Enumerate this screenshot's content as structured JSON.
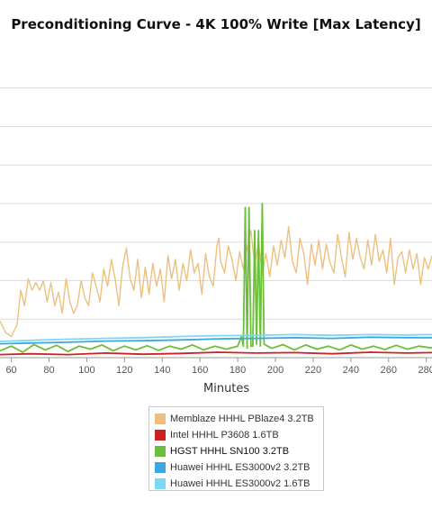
{
  "chart_data": {
    "type": "line",
    "title": "Preconditioning Curve - 4K 100% Write [Max Latency]",
    "xlabel": "Minutes",
    "ylabel": "",
    "x_ticks": [
      60,
      80,
      100,
      120,
      140,
      160,
      180,
      200,
      220,
      240,
      260,
      280
    ],
    "xlim": [
      54,
      283
    ],
    "ylim": [
      0,
      8
    ],
    "y_gridlines": [
      1,
      2,
      3,
      4,
      5,
      6,
      7
    ],
    "grid": true,
    "legend_position": "bottom",
    "series": [
      {
        "name": "Memblaze HHHL PBlaze4 3.2TB",
        "color": "#edc07f",
        "points": [
          [
            54,
            0.95
          ],
          [
            57,
            0.65
          ],
          [
            60,
            0.55
          ],
          [
            63,
            0.85
          ],
          [
            65,
            1.75
          ],
          [
            67,
            1.35
          ],
          [
            69,
            2.05
          ],
          [
            71,
            1.75
          ],
          [
            73,
            1.95
          ],
          [
            75,
            1.75
          ],
          [
            77,
            2.0
          ],
          [
            79,
            1.45
          ],
          [
            81,
            1.95
          ],
          [
            83,
            1.35
          ],
          [
            85,
            1.7
          ],
          [
            87,
            1.15
          ],
          [
            89,
            2.05
          ],
          [
            91,
            1.45
          ],
          [
            93,
            1.15
          ],
          [
            95,
            1.35
          ],
          [
            97,
            2.0
          ],
          [
            99,
            1.55
          ],
          [
            101,
            1.35
          ],
          [
            103,
            2.2
          ],
          [
            105,
            1.85
          ],
          [
            107,
            1.45
          ],
          [
            109,
            2.3
          ],
          [
            111,
            1.85
          ],
          [
            113,
            2.55
          ],
          [
            115,
            2.05
          ],
          [
            117,
            1.35
          ],
          [
            119,
            2.35
          ],
          [
            121,
            2.85
          ],
          [
            123,
            2.05
          ],
          [
            125,
            1.75
          ],
          [
            127,
            2.55
          ],
          [
            129,
            1.55
          ],
          [
            131,
            2.35
          ],
          [
            133,
            1.65
          ],
          [
            135,
            2.45
          ],
          [
            137,
            1.85
          ],
          [
            139,
            2.3
          ],
          [
            141,
            1.45
          ],
          [
            143,
            2.65
          ],
          [
            145,
            2.05
          ],
          [
            147,
            2.55
          ],
          [
            149,
            1.75
          ],
          [
            151,
            2.45
          ],
          [
            153,
            2.0
          ],
          [
            155,
            2.8
          ],
          [
            157,
            2.2
          ],
          [
            159,
            2.45
          ],
          [
            161,
            1.65
          ],
          [
            163,
            2.7
          ],
          [
            165,
            2.1
          ],
          [
            167,
            1.85
          ],
          [
            169,
            2.9
          ],
          [
            170,
            3.1
          ],
          [
            171,
            2.5
          ],
          [
            173,
            2.2
          ],
          [
            175,
            2.9
          ],
          [
            177,
            2.55
          ],
          [
            179,
            2.0
          ],
          [
            181,
            2.75
          ],
          [
            183,
            2.3
          ],
          [
            185,
            2.85
          ],
          [
            187,
            3.3
          ],
          [
            189,
            2.4
          ],
          [
            191,
            3.0
          ],
          [
            193,
            2.2
          ],
          [
            195,
            2.7
          ],
          [
            197,
            2.1
          ],
          [
            199,
            2.9
          ],
          [
            201,
            2.4
          ],
          [
            203,
            3.05
          ],
          [
            205,
            2.6
          ],
          [
            207,
            3.4
          ],
          [
            209,
            2.5
          ],
          [
            211,
            2.2
          ],
          [
            213,
            3.1
          ],
          [
            215,
            2.7
          ],
          [
            217,
            1.9
          ],
          [
            219,
            2.95
          ],
          [
            221,
            2.4
          ],
          [
            223,
            3.05
          ],
          [
            225,
            2.3
          ],
          [
            227,
            2.95
          ],
          [
            229,
            2.45
          ],
          [
            231,
            2.2
          ],
          [
            233,
            3.2
          ],
          [
            235,
            2.6
          ],
          [
            237,
            2.1
          ],
          [
            239,
            3.25
          ],
          [
            241,
            2.55
          ],
          [
            243,
            3.1
          ],
          [
            245,
            2.6
          ],
          [
            247,
            2.3
          ],
          [
            249,
            3.05
          ],
          [
            251,
            2.4
          ],
          [
            253,
            3.2
          ],
          [
            255,
            2.5
          ],
          [
            257,
            2.8
          ],
          [
            259,
            2.2
          ],
          [
            261,
            3.1
          ],
          [
            263,
            1.9
          ],
          [
            265,
            2.6
          ],
          [
            267,
            2.75
          ],
          [
            269,
            2.2
          ],
          [
            271,
            2.8
          ],
          [
            273,
            2.3
          ],
          [
            275,
            2.7
          ],
          [
            277,
            1.9
          ],
          [
            279,
            2.6
          ],
          [
            281,
            2.3
          ],
          [
            283,
            2.65
          ]
        ]
      },
      {
        "name": "Intel HHHL P3608 1.6TB",
        "color": "#cc2222",
        "points": [
          [
            54,
            0.08
          ],
          [
            70,
            0.1
          ],
          [
            90,
            0.08
          ],
          [
            110,
            0.12
          ],
          [
            130,
            0.09
          ],
          [
            150,
            0.11
          ],
          [
            170,
            0.14
          ],
          [
            190,
            0.12
          ],
          [
            210,
            0.13
          ],
          [
            230,
            0.1
          ],
          [
            250,
            0.14
          ],
          [
            270,
            0.12
          ],
          [
            283,
            0.13
          ]
        ]
      },
      {
        "name": "HGST HHHL SN100 3.2TB",
        "color": "#6cbf3a",
        "points": [
          [
            54,
            0.18
          ],
          [
            60,
            0.3
          ],
          [
            66,
            0.14
          ],
          [
            72,
            0.34
          ],
          [
            78,
            0.2
          ],
          [
            84,
            0.32
          ],
          [
            90,
            0.16
          ],
          [
            96,
            0.3
          ],
          [
            102,
            0.22
          ],
          [
            108,
            0.33
          ],
          [
            114,
            0.18
          ],
          [
            120,
            0.3
          ],
          [
            126,
            0.2
          ],
          [
            132,
            0.31
          ],
          [
            138,
            0.19
          ],
          [
            144,
            0.3
          ],
          [
            150,
            0.22
          ],
          [
            156,
            0.33
          ],
          [
            162,
            0.2
          ],
          [
            168,
            0.3
          ],
          [
            174,
            0.22
          ],
          [
            180,
            0.3
          ],
          [
            182,
            0.55
          ],
          [
            183,
            0.3
          ],
          [
            184,
            3.9
          ],
          [
            185,
            0.25
          ],
          [
            186,
            3.9
          ],
          [
            187,
            0.3
          ],
          [
            188,
            0.3
          ],
          [
            189,
            3.3
          ],
          [
            190,
            0.35
          ],
          [
            191,
            3.3
          ],
          [
            192,
            0.3
          ],
          [
            193,
            4.0
          ],
          [
            194,
            0.35
          ],
          [
            198,
            0.24
          ],
          [
            204,
            0.34
          ],
          [
            210,
            0.2
          ],
          [
            216,
            0.33
          ],
          [
            222,
            0.22
          ],
          [
            228,
            0.3
          ],
          [
            234,
            0.2
          ],
          [
            240,
            0.33
          ],
          [
            246,
            0.22
          ],
          [
            252,
            0.3
          ],
          [
            258,
            0.21
          ],
          [
            264,
            0.32
          ],
          [
            270,
            0.22
          ],
          [
            276,
            0.3
          ],
          [
            283,
            0.25
          ]
        ]
      },
      {
        "name": "Huawei HHHL ES3000v2 3.2TB",
        "color": "#3ea7e0",
        "points": [
          [
            54,
            0.36
          ],
          [
            70,
            0.38
          ],
          [
            90,
            0.4
          ],
          [
            110,
            0.43
          ],
          [
            130,
            0.44
          ],
          [
            150,
            0.46
          ],
          [
            170,
            0.49
          ],
          [
            190,
            0.5
          ],
          [
            210,
            0.52
          ],
          [
            230,
            0.5
          ],
          [
            250,
            0.53
          ],
          [
            270,
            0.52
          ],
          [
            283,
            0.52
          ]
        ]
      },
      {
        "name": "Huawei HHHL ES3000v2 1.6TB",
        "color": "#7dd8f4",
        "points": [
          [
            54,
            0.42
          ],
          [
            70,
            0.45
          ],
          [
            90,
            0.48
          ],
          [
            110,
            0.5
          ],
          [
            130,
            0.52
          ],
          [
            150,
            0.55
          ],
          [
            170,
            0.57
          ],
          [
            190,
            0.58
          ],
          [
            210,
            0.6
          ],
          [
            230,
            0.58
          ],
          [
            250,
            0.6
          ],
          [
            270,
            0.59
          ],
          [
            283,
            0.6
          ]
        ]
      }
    ]
  }
}
